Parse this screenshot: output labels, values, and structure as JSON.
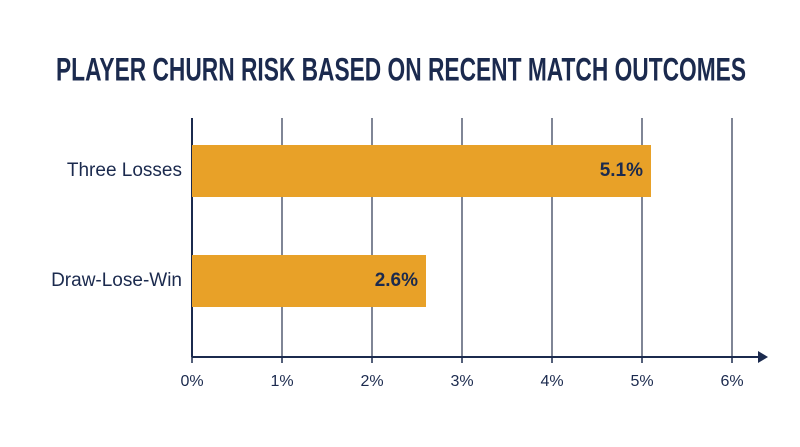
{
  "chart_data": {
    "type": "bar",
    "orientation": "horizontal",
    "title": "PLAYER CHURN RISK BASED ON RECENT MATCH OUTCOMES",
    "categories": [
      "Three Losses",
      "Draw-Lose-Win"
    ],
    "values": [
      5.1,
      2.6
    ],
    "value_labels": [
      "5.1%",
      "2.6%"
    ],
    "color": "#e8a128",
    "xlim": [
      0,
      6
    ],
    "xticks": [
      {
        "value": 0,
        "label": "0%"
      },
      {
        "value": 1,
        "label": "1%"
      },
      {
        "value": 2,
        "label": "2%"
      },
      {
        "value": 3,
        "label": "3%"
      },
      {
        "value": 4,
        "label": "4%"
      },
      {
        "value": 5,
        "label": "5%"
      },
      {
        "value": 6,
        "label": "6%"
      }
    ],
    "grid": true
  }
}
